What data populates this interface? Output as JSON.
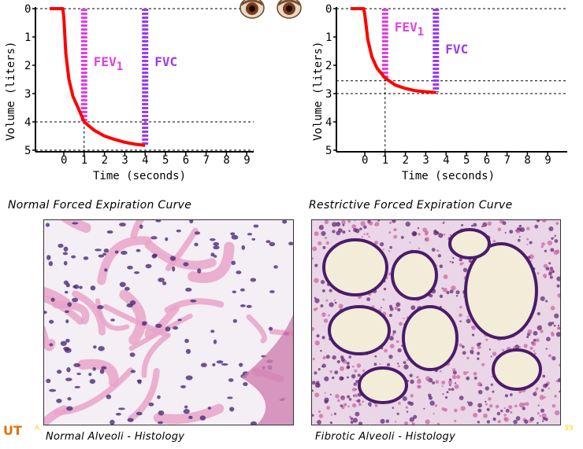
{
  "chart_data": [
    {
      "type": "line",
      "title": "Normal Forced Expiration Curve",
      "xlabel": "Time (seconds)",
      "ylabel": "Volume (liters)",
      "x_ticks": [
        "0",
        "1",
        "2",
        "3",
        "4",
        "5",
        "6",
        "7",
        "8",
        "9"
      ],
      "y_ticks": [
        "0",
        "1",
        "2",
        "3",
        "4",
        "5"
      ],
      "xlim": [
        -0.8,
        9
      ],
      "ylim": [
        0,
        5
      ],
      "y_inverted": true,
      "series": [
        {
          "color": "#ff0000",
          "points": [
            [
              -0.7,
              0
            ],
            [
              -0.05,
              0
            ],
            [
              0.0,
              0.3
            ],
            [
              0.1,
              1.6
            ],
            [
              0.25,
              2.5
            ],
            [
              0.45,
              3.1
            ],
            [
              0.7,
              3.5
            ],
            [
              1.0,
              4.0
            ],
            [
              1.5,
              4.3
            ],
            [
              2.0,
              4.5
            ],
            [
              2.5,
              4.62
            ],
            [
              3.0,
              4.72
            ],
            [
              3.5,
              4.79
            ],
            [
              4.0,
              4.83
            ]
          ]
        }
      ],
      "reference_lines": [
        {
          "orientation": "horizontal",
          "y": 0
        },
        {
          "orientation": "horizontal",
          "y": 4
        },
        {
          "orientation": "horizontal",
          "y": 5
        },
        {
          "orientation": "vertical",
          "x": 1
        }
      ],
      "markers": [
        {
          "label": "FEV",
          "subscript": "1",
          "x": 1,
          "color": "#e040e0"
        },
        {
          "label": "FVC",
          "x": 4,
          "color": "#9a3cf0"
        }
      ]
    },
    {
      "type": "line",
      "title": "Restrictive Forced Expiration Curve",
      "xlabel": "Time (seconds)",
      "ylabel": "Volume (liters)",
      "x_ticks": [
        "0",
        "1",
        "2",
        "3",
        "4",
        "5",
        "6",
        "7",
        "8",
        "9"
      ],
      "y_ticks": [
        "0",
        "1",
        "2",
        "3",
        "4",
        "5"
      ],
      "xlim": [
        -0.8,
        9
      ],
      "ylim": [
        0,
        5
      ],
      "y_inverted": true,
      "series": [
        {
          "color": "#ff0000",
          "points": [
            [
              -0.7,
              0
            ],
            [
              -0.05,
              0
            ],
            [
              0.0,
              0.2
            ],
            [
              0.15,
              1.1
            ],
            [
              0.35,
              1.7
            ],
            [
              0.6,
              2.1
            ],
            [
              1.0,
              2.45
            ],
            [
              1.5,
              2.7
            ],
            [
              2.0,
              2.82
            ],
            [
              2.5,
              2.9
            ],
            [
              3.0,
              2.94
            ],
            [
              3.5,
              2.96
            ]
          ]
        }
      ],
      "reference_lines": [
        {
          "orientation": "horizontal",
          "y": 0
        },
        {
          "orientation": "horizontal",
          "y": 2.55
        },
        {
          "orientation": "horizontal",
          "y": 3.0
        },
        {
          "orientation": "vertical",
          "x": 1
        }
      ],
      "markers": [
        {
          "label": "FEV",
          "subscript": "1",
          "x": 1,
          "color": "#e040e0"
        },
        {
          "label": "FVC",
          "x": 3.5,
          "color": "#9a3cf0"
        }
      ]
    }
  ],
  "panels": {
    "normal_caption": "Normal Forced Expiration Curve",
    "restrictive_caption": "Restrictive Forced Expiration Curve",
    "normal_histology_caption": "Normal Alveoli - Histology",
    "fibrotic_histology_caption": "Fibrotic Alveoli - Histology"
  },
  "footer": {
    "logo_text": "UT",
    "small_mark": "A",
    "slide_number": "39"
  },
  "colors": {
    "curve": "#ff0000",
    "fev1_bar": "#e040e0",
    "fvc_bar": "#9a3cf0",
    "tissue_pink": "#e9a3c8",
    "tissue_purple": "#4a1c6a"
  },
  "icons": [
    "eyes-icon"
  ]
}
